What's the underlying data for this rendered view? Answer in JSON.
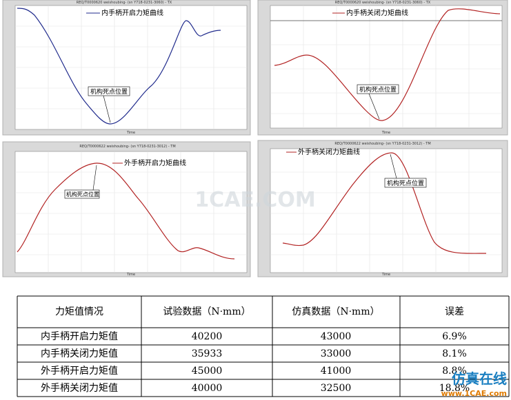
{
  "figures": [
    {
      "title": "REQ/T0000620 weishoubing- (sn Y718-0231-3060) - TX",
      "legend": "内手柄开启力矩曲线",
      "annotation": "机构死点位置",
      "x_label": "Time"
    },
    {
      "title": "REQ/T0000620 weishoubing- (sn Y718-0231-3060) - TX",
      "legend": "内手柄关闭力矩曲线",
      "annotation": "机构死点位置",
      "x_label": "Time"
    },
    {
      "title": "REQ/T0000622 weishoubing- (sn Y718-0231-3012) - TM",
      "legend": "外手柄开启力矩曲线",
      "annotation": "机构死点位置",
      "x_label": "Time"
    },
    {
      "title": "REQ/T0000622 weishoubing- (sn Y718-0231-3012) - TM",
      "legend": "外手柄关闭力矩曲线",
      "annotation": "机构死点位置",
      "x_label": "Time"
    }
  ],
  "watermark": "1CAE.COM",
  "table": {
    "header": [
      "力矩值情况",
      "试验数据（N·mm）",
      "仿真数据（N·mm）",
      "误差"
    ],
    "rows": [
      [
        "内手柄开启力矩值",
        "40200",
        "43000",
        "6.9%"
      ],
      [
        "内手柄关闭力矩值",
        "35933",
        "33000",
        "8.1%"
      ],
      [
        "外手柄开启力矩值",
        "45000",
        "41000",
        "8.8%"
      ],
      [
        "外手柄关闭力矩值",
        "40000",
        "32500",
        "18.8%"
      ]
    ]
  },
  "brand": {
    "name": "仿真在线",
    "url": "www.1CAE.com"
  }
}
